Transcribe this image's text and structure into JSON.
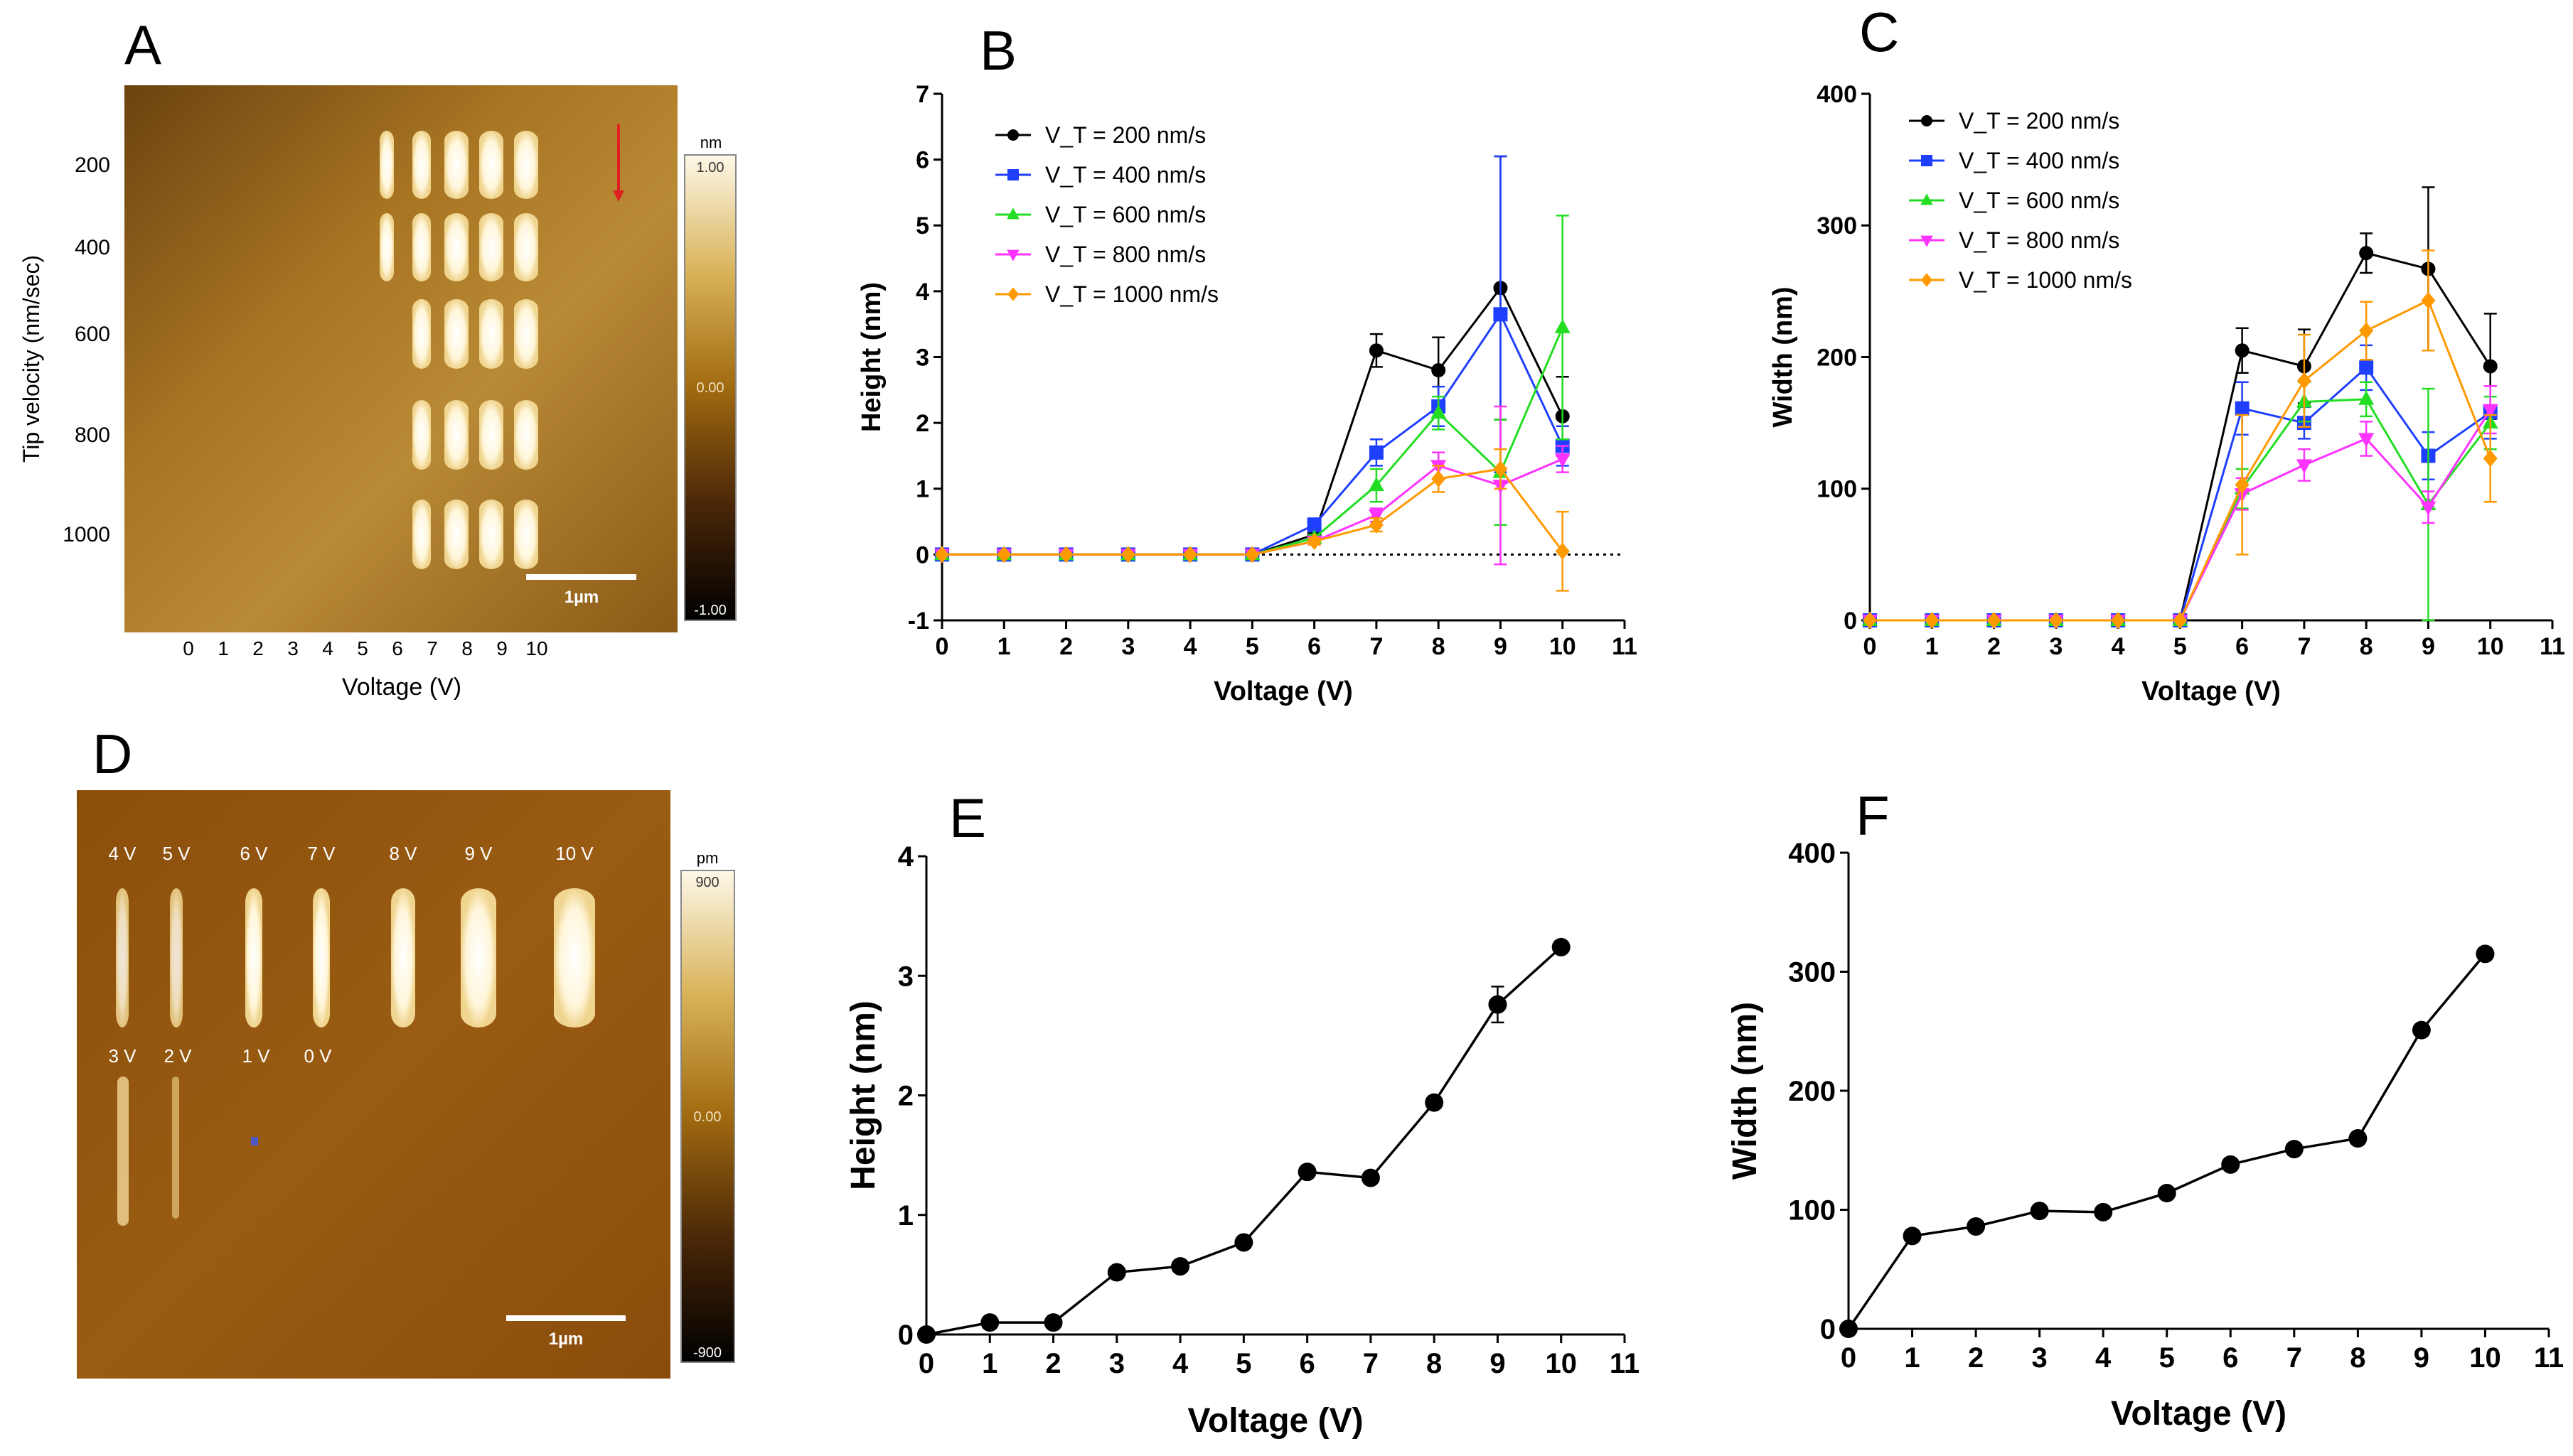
{
  "panels": {
    "A": {
      "letter": "A",
      "ylabel": "Tip velocity (nm/sec)",
      "xlabel": "Voltage (V)",
      "y_ticks": [
        "200",
        "400",
        "600",
        "800",
        "1000"
      ],
      "x_ticks": [
        "0",
        "1",
        "2",
        "3",
        "4",
        "5",
        "6",
        "7",
        "8",
        "9",
        "10"
      ],
      "scalebar": "1µm",
      "colorbar": {
        "unit": "nm",
        "max": "1.00",
        "mid": "0.00",
        "min": "-1.00"
      },
      "rows": [
        {
          "velocity": "200",
          "features": [
            5,
            6,
            7,
            8,
            9
          ]
        },
        {
          "velocity": "400",
          "features": [
            5,
            6,
            7,
            8,
            9
          ]
        },
        {
          "velocity": "600",
          "features": [
            6,
            7,
            8,
            9
          ]
        },
        {
          "velocity": "800",
          "features": [
            6,
            7,
            8,
            9
          ]
        },
        {
          "velocity": "1000",
          "features": [
            6,
            7,
            8,
            9
          ]
        }
      ]
    },
    "B": {
      "letter": "B"
    },
    "C": {
      "letter": "C"
    },
    "D": {
      "letter": "D",
      "scalebar": "1µm",
      "colorbar": {
        "unit": "pm",
        "max": "900",
        "mid": "0.00",
        "min": "-900"
      },
      "top_labels": [
        "4 V",
        "5 V",
        "6 V",
        "7 V",
        "8 V",
        "9 V",
        "10 V"
      ],
      "bottom_labels": [
        "3 V",
        "2 V",
        "1 V",
        "0 V"
      ]
    },
    "E": {
      "letter": "E"
    },
    "F": {
      "letter": "F"
    }
  },
  "chart_data": [
    {
      "panel": "B",
      "type": "line",
      "xlabel": "Voltage (V)",
      "ylabel": "Height (nm)",
      "xlim": [
        0,
        11
      ],
      "ylim": [
        -1,
        7
      ],
      "x_ticks": [
        0,
        1,
        2,
        3,
        4,
        5,
        6,
        7,
        8,
        9,
        10,
        11
      ],
      "y_ticks": [
        -1,
        0,
        1,
        2,
        3,
        4,
        5,
        6,
        7
      ],
      "reference_line": 0,
      "legend_position": "top-left",
      "x": [
        0,
        1,
        2,
        3,
        4,
        5,
        6,
        7,
        8,
        9,
        10
      ],
      "series": [
        {
          "name": "V_T = 200 nm/s",
          "color": "#000000",
          "marker": "circle",
          "values": [
            0,
            0,
            0,
            0,
            0,
            0,
            0.3,
            3.1,
            2.8,
            4.05,
            2.1
          ],
          "errors": [
            0,
            0,
            0,
            0,
            0,
            0,
            0.1,
            0.25,
            0.5,
            2.0,
            0.6
          ]
        },
        {
          "name": "V_T = 400 nm/s",
          "color": "#1f3fff",
          "marker": "square",
          "values": [
            0,
            0,
            0,
            0,
            0,
            0,
            0.45,
            1.55,
            2.25,
            3.65,
            1.65
          ],
          "errors": [
            0,
            0,
            0,
            0,
            0,
            0,
            0.1,
            0.2,
            0.3,
            2.4,
            0.3
          ]
        },
        {
          "name": "V_T = 600 nm/s",
          "color": "#22dd22",
          "marker": "triangle",
          "values": [
            0,
            0,
            0,
            0,
            0,
            0,
            0.25,
            1.05,
            2.15,
            1.25,
            3.45
          ],
          "errors": [
            0,
            0,
            0,
            0,
            0,
            0,
            0.05,
            0.25,
            0.25,
            0.8,
            1.7
          ]
        },
        {
          "name": "V_T = 800 nm/s",
          "color": "#ff33ff",
          "marker": "triangle-down",
          "values": [
            0,
            0,
            0,
            0,
            0,
            0,
            0.2,
            0.6,
            1.35,
            1.05,
            1.45
          ],
          "errors": [
            0,
            0,
            0,
            0,
            0,
            0,
            0.05,
            0.1,
            0.2,
            1.2,
            0.2
          ]
        },
        {
          "name": "V_T = 1000 nm/s",
          "color": "#ff9900",
          "marker": "diamond",
          "values": [
            0,
            0,
            0,
            0,
            0,
            0,
            0.2,
            0.45,
            1.15,
            1.3,
            0.05
          ],
          "errors": [
            0,
            0,
            0,
            0,
            0,
            0,
            0.05,
            0.1,
            0.2,
            0.3,
            0.6
          ]
        }
      ]
    },
    {
      "panel": "C",
      "type": "line",
      "xlabel": "Voltage (V)",
      "ylabel": "Width (nm)",
      "xlim": [
        0,
        11
      ],
      "ylim": [
        0,
        400
      ],
      "x_ticks": [
        0,
        1,
        2,
        3,
        4,
        5,
        6,
        7,
        8,
        9,
        10,
        11
      ],
      "y_ticks": [
        0,
        100,
        200,
        300,
        400
      ],
      "legend_position": "top-left",
      "x": [
        0,
        1,
        2,
        3,
        4,
        5,
        6,
        7,
        8,
        9,
        10
      ],
      "series": [
        {
          "name": "V_T = 200 nm/s",
          "color": "#000000",
          "marker": "circle",
          "values": [
            0,
            0,
            0,
            0,
            0,
            0,
            205,
            193,
            279,
            267,
            193
          ],
          "errors": [
            0,
            0,
            0,
            0,
            0,
            0,
            17,
            28,
            15,
            62,
            40
          ]
        },
        {
          "name": "V_T = 400 nm/s",
          "color": "#1f3fff",
          "marker": "square",
          "values": [
            0,
            0,
            0,
            0,
            0,
            0,
            161,
            150,
            192,
            125,
            158
          ],
          "errors": [
            0,
            0,
            0,
            0,
            0,
            0,
            20,
            12,
            17,
            18,
            20
          ]
        },
        {
          "name": "V_T = 600 nm/s",
          "color": "#22dd22",
          "marker": "triangle",
          "values": [
            0,
            0,
            0,
            0,
            0,
            0,
            100,
            166,
            168,
            88,
            150
          ],
          "errors": [
            0,
            0,
            0,
            0,
            0,
            0,
            15,
            15,
            13,
            88,
            20
          ]
        },
        {
          "name": "V_T = 800 nm/s",
          "color": "#ff33ff",
          "marker": "triangle-down",
          "values": [
            0,
            0,
            0,
            0,
            0,
            0,
            96,
            118,
            138,
            86,
            160
          ],
          "errors": [
            0,
            0,
            0,
            0,
            0,
            0,
            12,
            12,
            13,
            12,
            18
          ]
        },
        {
          "name": "V_T = 1000 nm/s",
          "color": "#ff9900",
          "marker": "diamond",
          "values": [
            0,
            0,
            0,
            0,
            0,
            0,
            103,
            182,
            220,
            243,
            123
          ],
          "errors": [
            0,
            0,
            0,
            0,
            0,
            0,
            53,
            35,
            22,
            38,
            33
          ]
        }
      ]
    },
    {
      "panel": "E",
      "type": "line",
      "xlabel": "Voltage (V)",
      "ylabel": "Height (nm)",
      "xlim": [
        0,
        11
      ],
      "ylim": [
        0,
        4
      ],
      "x_ticks": [
        0,
        1,
        2,
        3,
        4,
        5,
        6,
        7,
        8,
        9,
        10,
        11
      ],
      "y_ticks": [
        0,
        1,
        2,
        3,
        4
      ],
      "x": [
        0,
        1,
        2,
        3,
        4,
        5,
        6,
        7,
        8,
        9,
        10
      ],
      "series": [
        {
          "color": "#000000",
          "marker": "circle",
          "values": [
            0,
            0.1,
            0.1,
            0.52,
            0.57,
            0.77,
            1.36,
            1.31,
            1.94,
            2.76,
            3.24
          ],
          "errors": [
            0,
            0,
            0,
            0,
            0,
            0,
            0,
            0,
            0,
            0.15,
            0
          ]
        }
      ]
    },
    {
      "panel": "F",
      "type": "line",
      "xlabel": "Voltage (V)",
      "ylabel": "Width (nm)",
      "xlim": [
        0,
        11
      ],
      "ylim": [
        0,
        400
      ],
      "x_ticks": [
        0,
        1,
        2,
        3,
        4,
        5,
        6,
        7,
        8,
        9,
        10,
        11
      ],
      "y_ticks": [
        0,
        100,
        200,
        300,
        400
      ],
      "x": [
        0,
        1,
        2,
        3,
        4,
        5,
        6,
        7,
        8,
        9,
        10
      ],
      "series": [
        {
          "color": "#000000",
          "marker": "circle",
          "values": [
            0,
            78,
            86,
            99,
            98,
            114,
            138,
            151,
            160,
            251,
            315
          ],
          "errors": [
            0,
            0,
            0,
            0,
            0,
            0,
            0,
            0,
            0,
            0,
            0
          ]
        }
      ]
    }
  ]
}
